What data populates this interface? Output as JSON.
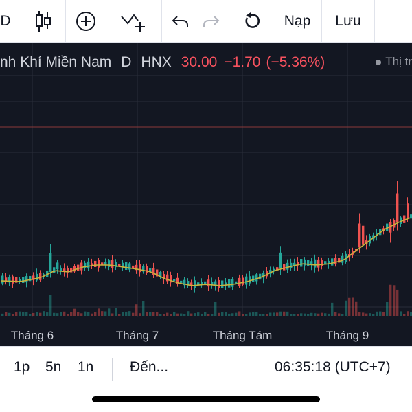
{
  "toolbar": {
    "interval_partial": "D",
    "load_label": "Nạp",
    "save_label": "Lưu",
    "icons": [
      "candlestick-icon",
      "add-circle-icon",
      "indicator-add-icon",
      "undo-icon",
      "redo-icon",
      "reset-icon"
    ]
  },
  "legend": {
    "name": "nh Khí Miền Nam",
    "interval": "D",
    "exchange": "HNX",
    "price": "30.00",
    "change": "−1.70",
    "change_pct": "(−5.36%)",
    "market_partial": "Thị tr"
  },
  "colors": {
    "background": "#131722",
    "up": "#26a69a",
    "down": "#ef5350",
    "ma": "#c9b33c",
    "price_line": "#8b3a3a",
    "grid": "#2a2e39"
  },
  "xaxis": {
    "labels": [
      "Tháng 6",
      "Tháng 7",
      "Tháng Tám",
      "Tháng 9"
    ]
  },
  "bottom": {
    "ranges": [
      "1p",
      "5n",
      "1n"
    ],
    "goto_label": "Đến...",
    "clock": "06:35:18 (UTC+7)"
  }
}
